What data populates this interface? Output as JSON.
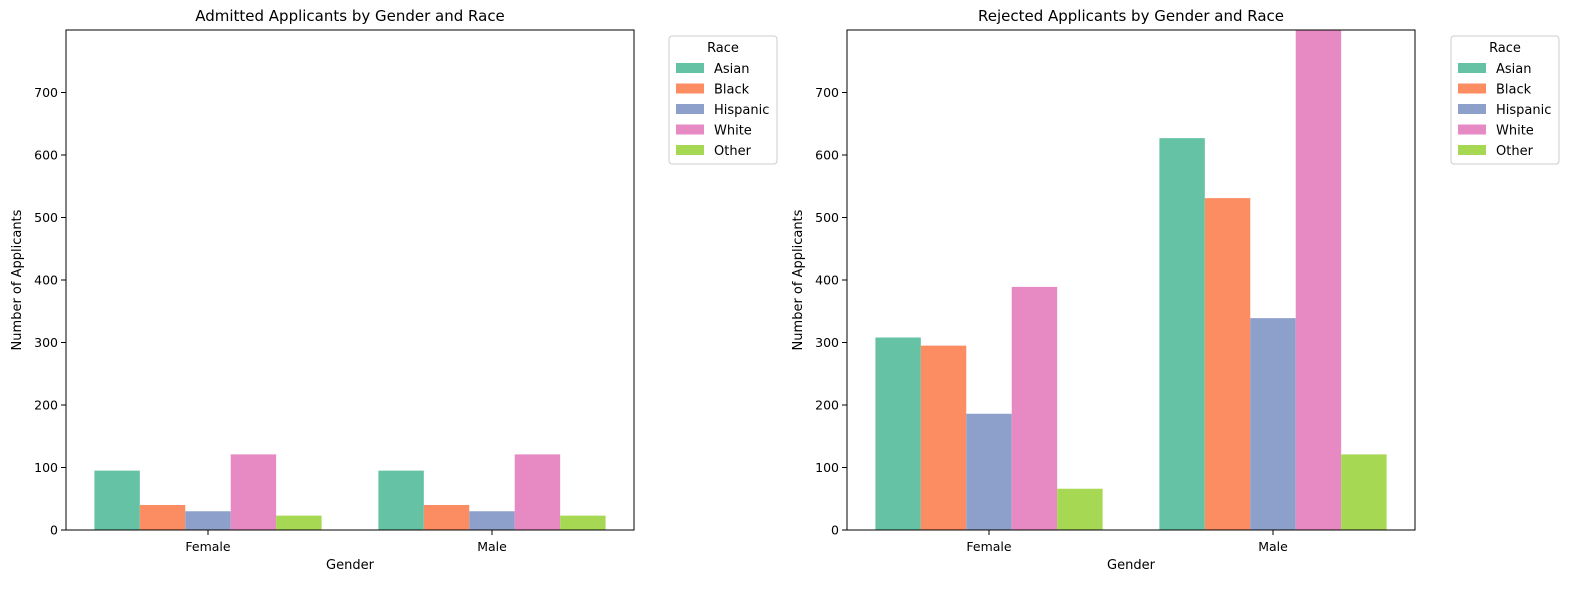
{
  "chart_data": [
    {
      "type": "bar",
      "title": "Admitted Applicants by Gender and Race",
      "xlabel": "Gender",
      "ylabel": "Number of Applicants",
      "categories": [
        "Female",
        "Male"
      ],
      "ylim": [
        0,
        800
      ],
      "yticks": [
        0,
        100,
        200,
        300,
        400,
        500,
        600,
        700
      ],
      "grid": false,
      "legend": {
        "title": "Race",
        "placement": "outside-top-right"
      },
      "series": [
        {
          "name": "Asian",
          "color": "#66c2a5",
          "values": [
            95,
            95
          ]
        },
        {
          "name": "Black",
          "color": "#fc8d62",
          "values": [
            40,
            40
          ]
        },
        {
          "name": "Hispanic",
          "color": "#8da0cb",
          "values": [
            30,
            30
          ]
        },
        {
          "name": "White",
          "color": "#e78ac3",
          "values": [
            121,
            121
          ]
        },
        {
          "name": "Other",
          "color": "#a6d854",
          "values": [
            23,
            23
          ]
        }
      ]
    },
    {
      "type": "bar",
      "title": "Rejected Applicants by Gender and Race",
      "xlabel": "Gender",
      "ylabel": "Number of Applicants",
      "categories": [
        "Female",
        "Male"
      ],
      "ylim": [
        0,
        800
      ],
      "yticks": [
        0,
        100,
        200,
        300,
        400,
        500,
        600,
        700
      ],
      "grid": false,
      "legend": {
        "title": "Race",
        "placement": "outside-top-right"
      },
      "series": [
        {
          "name": "Asian",
          "color": "#66c2a5",
          "values": [
            308,
            627
          ]
        },
        {
          "name": "Black",
          "color": "#fc8d62",
          "values": [
            295,
            531
          ]
        },
        {
          "name": "Hispanic",
          "color": "#8da0cb",
          "values": [
            186,
            339
          ]
        },
        {
          "name": "White",
          "color": "#e78ac3",
          "values": [
            389,
            800
          ]
        },
        {
          "name": "Other",
          "color": "#a6d854",
          "values": [
            66,
            121
          ]
        }
      ]
    }
  ]
}
